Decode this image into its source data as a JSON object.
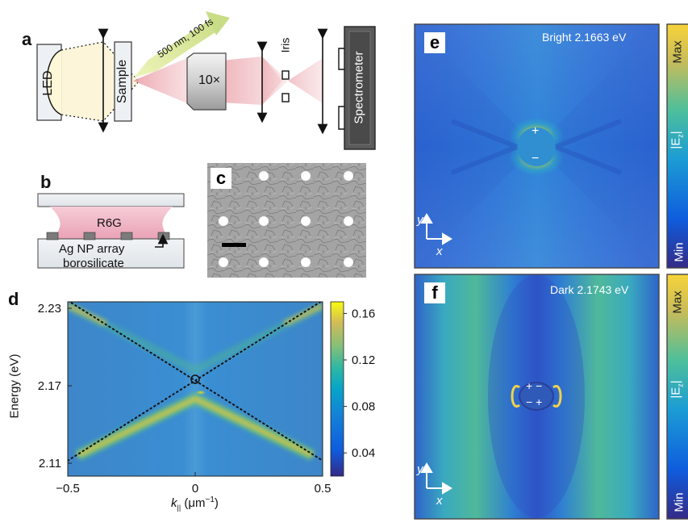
{
  "panels": {
    "a": "a",
    "b": "b",
    "c": "c",
    "d": "d",
    "e": "e",
    "f": "f"
  },
  "setup": {
    "led": "LED",
    "sample": "Sample",
    "pump": "500 nm, 100 fs",
    "objective": "10×",
    "iris": "Iris",
    "spectrometer": "Spectrometer"
  },
  "sample_stack": {
    "dye": "R6G",
    "array": "Ag NP array",
    "substrate": "borosilicate"
  },
  "dispersion": {
    "ylabel": "Energy (eV)",
    "xlabel_symbol": "k",
    "xlabel_sub": "||",
    "xlabel_unit": "(μm",
    "xlabel_exp": "−1",
    "xlabel_close": ")",
    "colorbar_ticks": [
      "0.16",
      "0.12",
      "0.08",
      "0.04"
    ]
  },
  "chart_data": {
    "type": "heatmap",
    "title": "",
    "xlabel": "k|| (μm−1)",
    "ylabel": "Energy (eV)",
    "xlim": [
      -0.5,
      0.5
    ],
    "ylim": [
      2.1,
      2.235
    ],
    "xticks": [
      "−0.5",
      "0",
      "0.5"
    ],
    "yticks": [
      "2.23",
      "2.17",
      "2.11"
    ],
    "ytick_values": [
      2.23,
      2.17,
      2.11
    ],
    "xtick_values": [
      -0.5,
      0,
      0.5
    ],
    "colorbar": {
      "range": [
        0.02,
        0.17
      ],
      "ticks": [
        0.16,
        0.12,
        0.08,
        0.04
      ],
      "colormap": "parula"
    },
    "dotted_lines": [
      {
        "x": [
          -0.5,
          0.5
        ],
        "y": [
          2.112,
          2.236
        ]
      },
      {
        "x": [
          -0.5,
          0.5
        ],
        "y": [
          2.236,
          2.112
        ]
      }
    ],
    "circle_marker": {
      "x": 0.0,
      "y": 2.175
    },
    "bright_band_peak": {
      "x": 0.0,
      "y": 2.164
    }
  },
  "field_maps": {
    "bright_title": "Bright 2.1663 eV",
    "dark_title": "Dark 2.1743 eV",
    "cbar_max": "Max",
    "cbar_min": "Min",
    "cbar_label": "|E",
    "cbar_label_sub": "z",
    "cbar_label_close": "|",
    "axis_y": "y",
    "axis_x": "x",
    "bright_charges": [
      "+",
      "−"
    ],
    "dark_charges": [
      "+ −",
      "− +"
    ]
  },
  "colors": {
    "accent_pink": "#e8a0a8",
    "parula_yellow": "#f5d020",
    "parula_blue": "#3b4fc0",
    "parula_teal": "#3bb0b5",
    "pump_green": "#dde89a"
  }
}
